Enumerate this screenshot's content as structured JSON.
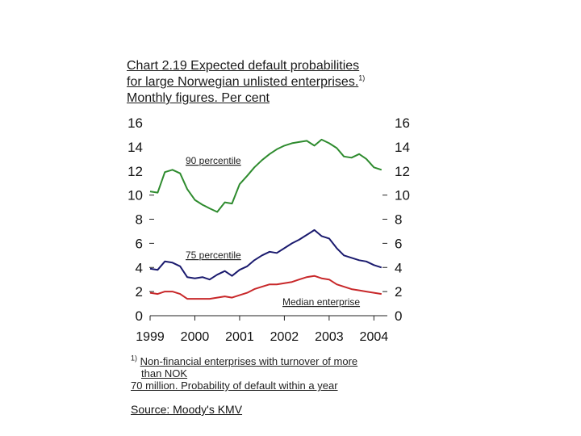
{
  "title": {
    "line1": "Chart 2.19 Expected default probabilities",
    "line2": "for large Norwegian unlisted enterprises.",
    "sup": "1)",
    "line3": "Monthly figures. Per cent"
  },
  "footnote": {
    "marker": "1)",
    "line1": "Non-financial enterprises with turnover of more",
    "line2": "than NOK",
    "line3": "70 million. Probability of default within a year"
  },
  "source": "Source: Moody's KMV",
  "chart_data": {
    "type": "line",
    "title": "Chart 2.19 Expected default probabilities for large Norwegian unlisted enterprises. Monthly figures. Per cent",
    "xlabel": "",
    "ylabel": "Per cent",
    "xlim": [
      1999.0,
      2004.3
    ],
    "ylim": [
      0,
      16
    ],
    "y_ticks": [
      "0",
      "2",
      "4",
      "6",
      "8",
      "10",
      "12",
      "14",
      "16"
    ],
    "x_ticks": [
      "1999",
      "2000",
      "2001",
      "2002",
      "2003",
      "2004"
    ],
    "colors": {
      "p90": "#2e8b2e",
      "p75": "#1a1a6e",
      "median": "#c8282a"
    },
    "series": [
      {
        "name": "90 percentile",
        "x": [
          1999.0,
          1999.17,
          1999.33,
          1999.5,
          1999.67,
          1999.83,
          2000.0,
          2000.17,
          2000.33,
          2000.5,
          2000.67,
          2000.83,
          2001.0,
          2001.17,
          2001.33,
          2001.5,
          2001.67,
          2001.83,
          2002.0,
          2002.17,
          2002.33,
          2002.5,
          2002.67,
          2002.83,
          2003.0,
          2003.17,
          2003.33,
          2003.5,
          2003.67,
          2003.83,
          2004.0,
          2004.17
        ],
        "values": [
          10.3,
          10.2,
          11.9,
          12.1,
          11.8,
          10.5,
          9.6,
          9.2,
          8.9,
          8.6,
          9.4,
          9.3,
          10.9,
          11.6,
          12.3,
          12.9,
          13.4,
          13.8,
          14.1,
          14.3,
          14.4,
          14.5,
          14.1,
          14.6,
          14.3,
          13.9,
          13.2,
          13.1,
          13.4,
          13.0,
          12.3,
          12.1
        ]
      },
      {
        "name": "75 percentile",
        "x": [
          1999.0,
          1999.17,
          1999.33,
          1999.5,
          1999.67,
          1999.83,
          2000.0,
          2000.17,
          2000.33,
          2000.5,
          2000.67,
          2000.83,
          2001.0,
          2001.17,
          2001.33,
          2001.5,
          2001.67,
          2001.83,
          2002.0,
          2002.17,
          2002.33,
          2002.5,
          2002.67,
          2002.83,
          2003.0,
          2003.17,
          2003.33,
          2003.5,
          2003.67,
          2003.83,
          2004.0,
          2004.17
        ],
        "values": [
          3.9,
          3.8,
          4.5,
          4.4,
          4.1,
          3.2,
          3.1,
          3.2,
          3.0,
          3.4,
          3.7,
          3.3,
          3.8,
          4.1,
          4.6,
          5.0,
          5.3,
          5.2,
          5.6,
          6.0,
          6.3,
          6.7,
          7.1,
          6.6,
          6.4,
          5.6,
          5.0,
          4.8,
          4.6,
          4.5,
          4.2,
          4.0
        ]
      },
      {
        "name": "Median enterprise",
        "x": [
          1999.0,
          1999.17,
          1999.33,
          1999.5,
          1999.67,
          1999.83,
          2000.0,
          2000.17,
          2000.33,
          2000.5,
          2000.67,
          2000.83,
          2001.0,
          2001.17,
          2001.33,
          2001.5,
          2001.67,
          2001.83,
          2002.0,
          2002.17,
          2002.33,
          2002.5,
          2002.67,
          2002.83,
          2003.0,
          2003.17,
          2003.33,
          2003.5,
          2003.67,
          2003.83,
          2004.0,
          2004.17
        ],
        "values": [
          1.9,
          1.8,
          2.0,
          2.0,
          1.8,
          1.4,
          1.4,
          1.4,
          1.4,
          1.5,
          1.6,
          1.5,
          1.7,
          1.9,
          2.2,
          2.4,
          2.6,
          2.6,
          2.7,
          2.8,
          3.0,
          3.2,
          3.3,
          3.1,
          3.0,
          2.6,
          2.4,
          2.2,
          2.1,
          2.0,
          1.9,
          1.8
        ]
      }
    ],
    "annotations": [
      {
        "text": "90 percentile",
        "series": "90 percentile"
      },
      {
        "text": "75 percentile",
        "series": "75 percentile"
      },
      {
        "text": "Median enterprise",
        "series": "Median enterprise"
      }
    ]
  }
}
